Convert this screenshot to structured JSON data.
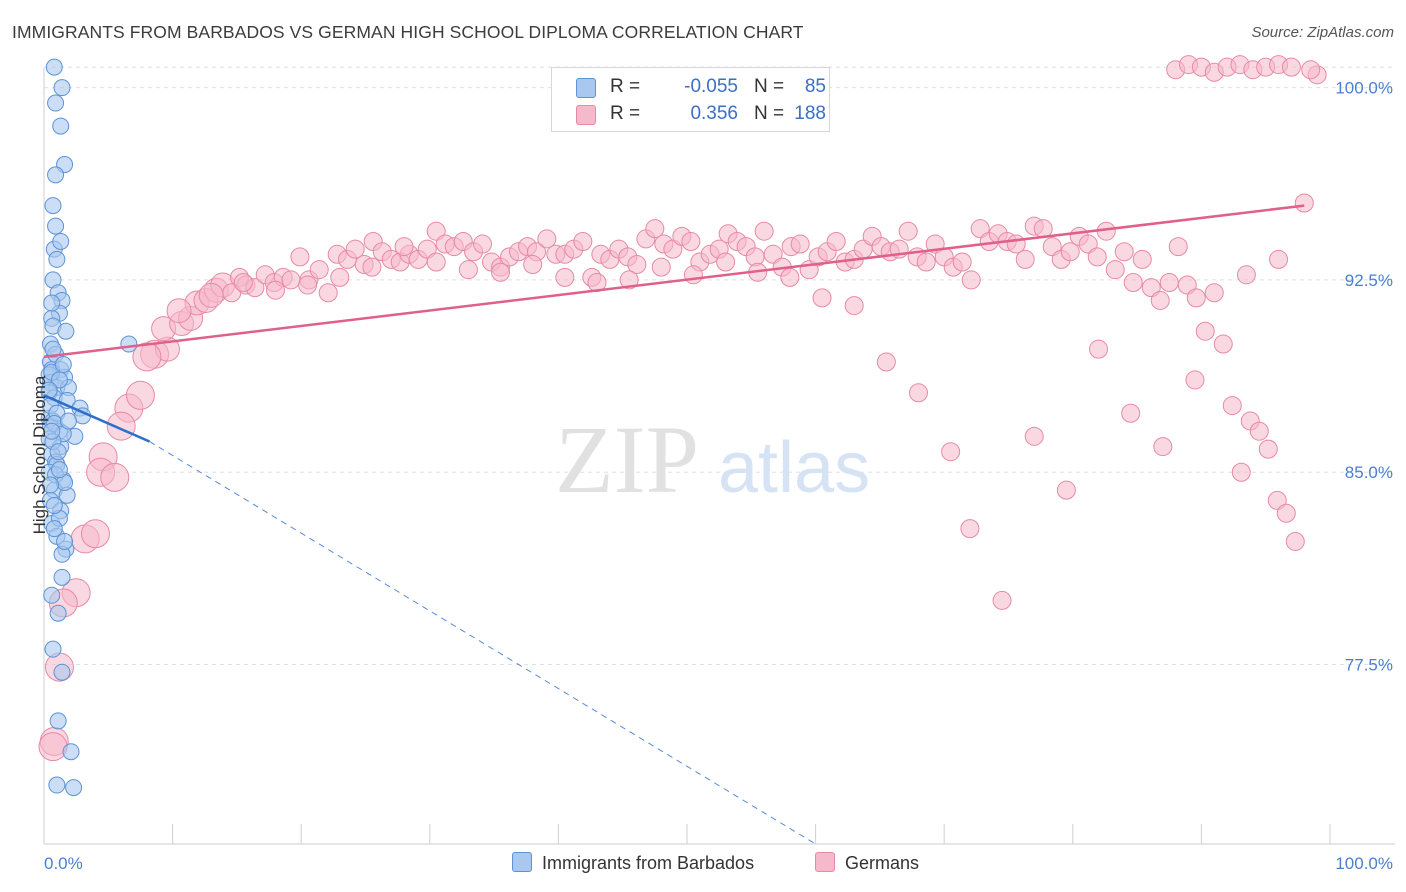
{
  "title": "IMMIGRANTS FROM BARBADOS VS GERMAN HIGH SCHOOL DIPLOMA CORRELATION CHART",
  "source": "Source: ZipAtlas.com",
  "watermark": {
    "zip": "ZIP",
    "atlas": "atlas"
  },
  "legend_top": [
    {
      "r_label": "R =",
      "r_value": "-0.055",
      "n_label": "N =",
      "n_value": "85"
    },
    {
      "r_label": "R =",
      "r_value": "0.356",
      "n_label": "N =",
      "n_value": "188"
    }
  ],
  "legend_bottom": [
    "Immigrants from Barbados",
    "Germans"
  ],
  "colors": {
    "blue_fill": "#a9c8ef",
    "blue_stroke": "#5b93d8",
    "blue_line": "#2f6fcc",
    "pink_fill": "#f6b8cb",
    "pink_stroke": "#e889a6",
    "pink_line": "#e0608c",
    "tick_label": "#4a7fd0",
    "grid": "#e0e0e0"
  },
  "chart_data": {
    "type": "scatter",
    "title": "IMMIGRANTS FROM BARBADOS VS GERMAN HIGH SCHOOL DIPLOMA CORRELATION CHART",
    "xlabel": "",
    "ylabel": "High School Diploma",
    "xlim": [
      0,
      100
    ],
    "ylim": [
      70.5,
      101
    ],
    "x_tick_labels": [
      "0.0%",
      "100.0%"
    ],
    "y_ticks": [
      77.5,
      85.0,
      92.5,
      100.0
    ],
    "y_tick_labels": [
      "77.5%",
      "85.0%",
      "92.5%",
      "100.0%"
    ],
    "grid": true,
    "legend_position": "top-center",
    "series": [
      {
        "name": "Immigrants from Barbados",
        "r": -0.055,
        "n": 85,
        "trend": {
          "x": [
            0,
            8.2
          ],
          "y": [
            88.0,
            86.2
          ]
        },
        "trend_dashed": {
          "x": [
            8.2,
            60
          ],
          "y": [
            86.2,
            70.5
          ]
        },
        "points": [
          [
            0.8,
            100.8
          ],
          [
            1.4,
            100.0
          ],
          [
            0.9,
            99.4
          ],
          [
            1.3,
            98.5
          ],
          [
            1.6,
            97.0
          ],
          [
            0.9,
            96.6
          ],
          [
            0.7,
            95.4
          ],
          [
            0.9,
            94.6
          ],
          [
            0.8,
            93.7
          ],
          [
            0.7,
            92.5
          ],
          [
            1.1,
            92.0
          ],
          [
            1.4,
            91.7
          ],
          [
            1.2,
            91.2
          ],
          [
            0.6,
            91.0
          ],
          [
            0.7,
            90.7
          ],
          [
            1.7,
            90.5
          ],
          [
            6.6,
            90.0
          ],
          [
            0.5,
            89.3
          ],
          [
            0.6,
            89.0
          ],
          [
            1.3,
            89.0
          ],
          [
            0.4,
            88.8
          ],
          [
            1.6,
            88.7
          ],
          [
            0.5,
            88.5
          ],
          [
            1.0,
            88.3
          ],
          [
            1.9,
            88.3
          ],
          [
            0.4,
            88.1
          ],
          [
            0.8,
            87.9
          ],
          [
            1.8,
            87.8
          ],
          [
            2.8,
            87.5
          ],
          [
            3.0,
            87.2
          ],
          [
            0.4,
            87.1
          ],
          [
            0.7,
            87.0
          ],
          [
            0.5,
            86.8
          ],
          [
            1.2,
            86.6
          ],
          [
            2.4,
            86.4
          ],
          [
            0.4,
            86.3
          ],
          [
            1.3,
            86.0
          ],
          [
            0.6,
            85.7
          ],
          [
            0.9,
            85.4
          ],
          [
            1.0,
            85.3
          ],
          [
            0.4,
            85.0
          ],
          [
            1.5,
            84.7
          ],
          [
            0.8,
            84.3
          ],
          [
            1.8,
            84.1
          ],
          [
            0.5,
            83.9
          ],
          [
            1.3,
            83.5
          ],
          [
            0.6,
            83.0
          ],
          [
            1.0,
            82.5
          ],
          [
            1.7,
            82.0
          ],
          [
            1.4,
            81.8
          ],
          [
            0.6,
            80.2
          ],
          [
            1.1,
            79.5
          ],
          [
            0.7,
            78.1
          ],
          [
            1.4,
            77.2
          ],
          [
            1.1,
            75.3
          ],
          [
            2.1,
            74.1
          ],
          [
            1.0,
            72.8
          ],
          [
            2.3,
            72.7
          ],
          [
            0.5,
            90.0
          ],
          [
            0.9,
            89.6
          ],
          [
            0.6,
            88.9
          ],
          [
            1.2,
            88.6
          ],
          [
            0.5,
            87.6
          ],
          [
            1.0,
            87.3
          ],
          [
            0.8,
            86.9
          ],
          [
            1.5,
            86.5
          ],
          [
            0.7,
            86.2
          ],
          [
            1.1,
            85.8
          ],
          [
            0.9,
            84.9
          ],
          [
            1.6,
            84.6
          ],
          [
            0.5,
            84.5
          ],
          [
            1.2,
            83.2
          ],
          [
            0.8,
            82.8
          ],
          [
            1.4,
            80.9
          ],
          [
            0.6,
            91.6
          ],
          [
            1.0,
            93.3
          ],
          [
            1.3,
            94.0
          ],
          [
            0.7,
            89.8
          ],
          [
            1.5,
            89.2
          ],
          [
            0.4,
            88.2
          ],
          [
            1.9,
            87.0
          ],
          [
            0.6,
            86.6
          ],
          [
            1.2,
            85.1
          ],
          [
            0.8,
            83.7
          ],
          [
            1.6,
            82.3
          ]
        ],
        "point_radii": [
          1
        ]
      },
      {
        "name": "Germans",
        "r": 0.356,
        "n": 188,
        "trend": {
          "x": [
            0,
            98
          ],
          "y": [
            89.5,
            95.4
          ]
        },
        "points": [
          [
            3.2,
            82.4
          ],
          [
            4.6,
            85.6
          ],
          [
            4.4,
            85.0
          ],
          [
            6.6,
            87.5
          ],
          [
            7.5,
            88.0
          ],
          [
            6.0,
            86.8
          ],
          [
            8.6,
            89.6
          ],
          [
            9.6,
            89.8
          ],
          [
            9.3,
            90.6
          ],
          [
            10.7,
            90.8
          ],
          [
            11.4,
            91.0
          ],
          [
            11.9,
            91.6
          ],
          [
            12.6,
            91.7
          ],
          [
            13.4,
            92.1
          ],
          [
            13.9,
            92.3
          ],
          [
            14.6,
            92.0
          ],
          [
            15.2,
            92.6
          ],
          [
            15.7,
            92.3
          ],
          [
            16.4,
            92.2
          ],
          [
            17.2,
            92.7
          ],
          [
            17.9,
            92.4
          ],
          [
            18.6,
            92.6
          ],
          [
            19.2,
            92.5
          ],
          [
            19.9,
            93.4
          ],
          [
            20.6,
            92.5
          ],
          [
            21.4,
            92.9
          ],
          [
            22.1,
            92.0
          ],
          [
            22.8,
            93.5
          ],
          [
            23.6,
            93.3
          ],
          [
            24.2,
            93.7
          ],
          [
            24.9,
            93.1
          ],
          [
            25.6,
            94.0
          ],
          [
            26.3,
            93.6
          ],
          [
            27.0,
            93.3
          ],
          [
            27.7,
            93.2
          ],
          [
            28.4,
            93.5
          ],
          [
            29.1,
            93.3
          ],
          [
            29.8,
            93.7
          ],
          [
            30.5,
            94.4
          ],
          [
            31.2,
            93.9
          ],
          [
            31.9,
            93.8
          ],
          [
            32.6,
            94.0
          ],
          [
            33.4,
            93.6
          ],
          [
            34.1,
            93.9
          ],
          [
            34.8,
            93.2
          ],
          [
            35.5,
            93.0
          ],
          [
            36.2,
            93.4
          ],
          [
            36.9,
            93.6
          ],
          [
            37.6,
            93.8
          ],
          [
            38.3,
            93.6
          ],
          [
            39.1,
            94.1
          ],
          [
            39.8,
            93.5
          ],
          [
            40.5,
            93.5
          ],
          [
            41.2,
            93.7
          ],
          [
            41.9,
            94.0
          ],
          [
            42.6,
            92.6
          ],
          [
            43.3,
            93.5
          ],
          [
            44.0,
            93.3
          ],
          [
            44.7,
            93.7
          ],
          [
            45.4,
            93.4
          ],
          [
            46.1,
            93.1
          ],
          [
            46.8,
            94.1
          ],
          [
            47.5,
            94.5
          ],
          [
            48.2,
            93.9
          ],
          [
            48.9,
            93.7
          ],
          [
            49.6,
            94.2
          ],
          [
            50.3,
            94.0
          ],
          [
            51.0,
            93.2
          ],
          [
            51.8,
            93.5
          ],
          [
            52.5,
            93.7
          ],
          [
            53.2,
            94.3
          ],
          [
            53.9,
            94.0
          ],
          [
            54.6,
            93.8
          ],
          [
            55.3,
            93.4
          ],
          [
            56.0,
            94.4
          ],
          [
            56.7,
            93.5
          ],
          [
            57.4,
            93.0
          ],
          [
            58.1,
            93.8
          ],
          [
            58.8,
            93.9
          ],
          [
            59.5,
            92.9
          ],
          [
            60.2,
            93.4
          ],
          [
            60.9,
            93.6
          ],
          [
            61.6,
            94.0
          ],
          [
            62.3,
            93.2
          ],
          [
            63.0,
            93.3
          ],
          [
            63.7,
            93.7
          ],
          [
            64.4,
            94.2
          ],
          [
            65.1,
            93.8
          ],
          [
            65.8,
            93.6
          ],
          [
            66.5,
            93.7
          ],
          [
            67.2,
            94.4
          ],
          [
            67.9,
            93.4
          ],
          [
            68.6,
            93.2
          ],
          [
            69.3,
            93.9
          ],
          [
            70.0,
            93.4
          ],
          [
            70.7,
            93.0
          ],
          [
            71.4,
            93.2
          ],
          [
            72.1,
            92.5
          ],
          [
            72.8,
            94.5
          ],
          [
            73.5,
            94.0
          ],
          [
            74.2,
            94.3
          ],
          [
            74.9,
            94.0
          ],
          [
            75.6,
            93.9
          ],
          [
            76.3,
            93.3
          ],
          [
            77.0,
            94.6
          ],
          [
            77.7,
            94.5
          ],
          [
            78.4,
            93.8
          ],
          [
            79.1,
            93.3
          ],
          [
            79.8,
            93.6
          ],
          [
            80.5,
            94.2
          ],
          [
            81.2,
            93.9
          ],
          [
            81.9,
            93.4
          ],
          [
            82.6,
            94.4
          ],
          [
            83.3,
            92.9
          ],
          [
            84.0,
            93.6
          ],
          [
            84.7,
            92.4
          ],
          [
            85.4,
            93.3
          ],
          [
            86.1,
            92.2
          ],
          [
            86.8,
            91.7
          ],
          [
            87.5,
            92.4
          ],
          [
            88.2,
            93.8
          ],
          [
            88.9,
            92.3
          ],
          [
            89.6,
            91.8
          ],
          [
            90.3,
            90.5
          ],
          [
            91.0,
            92.0
          ],
          [
            91.7,
            90.0
          ],
          [
            92.4,
            87.6
          ],
          [
            93.1,
            85.0
          ],
          [
            93.8,
            87.0
          ],
          [
            94.5,
            86.6
          ],
          [
            95.2,
            85.9
          ],
          [
            95.9,
            83.9
          ],
          [
            96.6,
            83.4
          ],
          [
            97.3,
            82.3
          ],
          [
            98.0,
            95.5
          ],
          [
            96.0,
            93.3
          ],
          [
            93.5,
            92.7
          ],
          [
            89.5,
            88.6
          ],
          [
            87.0,
            86.0
          ],
          [
            84.5,
            87.3
          ],
          [
            82.0,
            89.8
          ],
          [
            79.5,
            84.3
          ],
          [
            77.0,
            86.4
          ],
          [
            74.5,
            80.0
          ],
          [
            72.0,
            82.8
          ],
          [
            70.5,
            85.8
          ],
          [
            68.0,
            88.1
          ],
          [
            65.5,
            89.3
          ],
          [
            63.0,
            91.5
          ],
          [
            60.5,
            91.8
          ],
          [
            58.0,
            92.6
          ],
          [
            55.5,
            92.8
          ],
          [
            53.0,
            93.2
          ],
          [
            50.5,
            92.7
          ],
          [
            48.0,
            93.0
          ],
          [
            45.5,
            92.5
          ],
          [
            43.0,
            92.4
          ],
          [
            40.5,
            92.6
          ],
          [
            38.0,
            93.1
          ],
          [
            35.5,
            92.8
          ],
          [
            33.0,
            92.9
          ],
          [
            30.5,
            93.2
          ],
          [
            28.0,
            93.8
          ],
          [
            25.5,
            93.0
          ],
          [
            23.0,
            92.6
          ],
          [
            20.5,
            92.3
          ],
          [
            18.0,
            92.1
          ],
          [
            15.5,
            92.4
          ],
          [
            13.0,
            91.9
          ],
          [
            10.5,
            91.3
          ],
          [
            8.0,
            89.5
          ],
          [
            5.5,
            84.8
          ],
          [
            4.0,
            82.6
          ],
          [
            2.5,
            80.3
          ],
          [
            1.5,
            79.9
          ],
          [
            1.2,
            77.4
          ],
          [
            0.8,
            74.5
          ],
          [
            0.7,
            74.3
          ],
          [
            88.0,
            100.7
          ],
          [
            89.0,
            100.9
          ],
          [
            90.0,
            100.8
          ],
          [
            91.0,
            100.6
          ],
          [
            92.0,
            100.8
          ],
          [
            93.0,
            100.9
          ],
          [
            94.0,
            100.7
          ],
          [
            95.0,
            100.8
          ],
          [
            96.0,
            100.9
          ],
          [
            97.0,
            100.8
          ],
          [
            99.0,
            100.5
          ],
          [
            98.5,
            100.7
          ]
        ]
      }
    ]
  }
}
